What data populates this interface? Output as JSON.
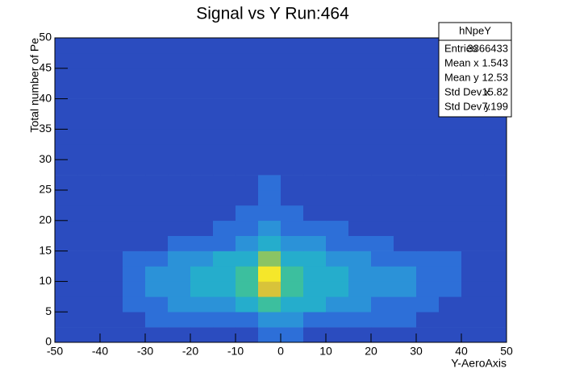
{
  "chart_data": {
    "type": "hist2d",
    "title": "Signal vs Y Run:464",
    "x_label": "Y-AeroAxis",
    "y_label": "Total number of Pe",
    "xlim": [
      -50,
      50
    ],
    "ylim": [
      0,
      50
    ],
    "xticks": [
      -50,
      -40,
      -30,
      -20,
      -10,
      0,
      10,
      20,
      30,
      40,
      50
    ],
    "yticks": [
      0,
      5,
      10,
      15,
      20,
      25,
      30,
      35,
      40,
      45,
      50
    ],
    "x_bins": [
      -50,
      -45,
      -40,
      -35,
      -30,
      -25,
      -20,
      -15,
      -10,
      -5,
      0,
      5,
      10,
      15,
      20,
      25,
      30,
      35,
      40,
      45,
      50
    ],
    "y_bins": [
      0,
      2.5,
      5,
      7.5,
      10,
      12.5,
      15,
      17.5,
      20,
      22.5,
      25,
      27.5,
      30,
      32.5,
      35,
      37.5,
      40,
      42.5,
      45,
      47.5,
      50
    ],
    "zlim": [
      1,
      8
    ],
    "palette": [
      "#2b4cbf",
      "#2d6fd8",
      "#2b92d8",
      "#25adcc",
      "#3cbf9e",
      "#8ac464",
      "#d8c33a",
      "#f5e72a"
    ],
    "z": [
      [
        1,
        1,
        1,
        1,
        1,
        1,
        1,
        1,
        1,
        2,
        2,
        1,
        1,
        1,
        1,
        1,
        1,
        1,
        1,
        1
      ],
      [
        1,
        1,
        1,
        1,
        2,
        2,
        2,
        2,
        2,
        3,
        3,
        2,
        2,
        2,
        2,
        2,
        1,
        1,
        1,
        1
      ],
      [
        1,
        1,
        1,
        2,
        2,
        3,
        3,
        3,
        4,
        5,
        4,
        4,
        3,
        3,
        2,
        2,
        2,
        1,
        1,
        1
      ],
      [
        1,
        1,
        1,
        2,
        3,
        3,
        4,
        4,
        5,
        7,
        5,
        4,
        4,
        3,
        3,
        3,
        2,
        2,
        1,
        1
      ],
      [
        1,
        1,
        1,
        2,
        3,
        3,
        4,
        4,
        5,
        8,
        5,
        4,
        4,
        3,
        3,
        3,
        2,
        2,
        1,
        1
      ],
      [
        1,
        1,
        1,
        2,
        2,
        3,
        3,
        4,
        4,
        6,
        4,
        4,
        3,
        3,
        2,
        2,
        2,
        2,
        1,
        1
      ],
      [
        1,
        1,
        1,
        1,
        1,
        2,
        2,
        2,
        3,
        4,
        3,
        3,
        2,
        2,
        2,
        1,
        1,
        1,
        1,
        1
      ],
      [
        1,
        1,
        1,
        1,
        1,
        1,
        1,
        2,
        2,
        3,
        2,
        2,
        2,
        1,
        1,
        1,
        1,
        1,
        1,
        1
      ],
      [
        1,
        1,
        1,
        1,
        1,
        1,
        1,
        1,
        2,
        2,
        2,
        1,
        1,
        1,
        1,
        1,
        1,
        1,
        1,
        1
      ],
      [
        1,
        1,
        1,
        1,
        1,
        1,
        1,
        1,
        1,
        2,
        1,
        1,
        1,
        1,
        1,
        1,
        1,
        1,
        1,
        1
      ],
      [
        1,
        1,
        1,
        1,
        1,
        1,
        1,
        1,
        1,
        2,
        1,
        1,
        1,
        1,
        1,
        1,
        1,
        1,
        1,
        1
      ],
      [
        1,
        1,
        1,
        1,
        1,
        1,
        1,
        1,
        1,
        1,
        1,
        1,
        1,
        1,
        1,
        1,
        1,
        1,
        1,
        1
      ],
      [
        1,
        1,
        1,
        1,
        1,
        1,
        1,
        1,
        1,
        1,
        1,
        1,
        1,
        1,
        1,
        1,
        1,
        1,
        1,
        1
      ],
      [
        1,
        1,
        1,
        1,
        1,
        1,
        1,
        1,
        1,
        1,
        1,
        1,
        1,
        1,
        1,
        1,
        1,
        1,
        1,
        1
      ],
      [
        1,
        1,
        1,
        1,
        1,
        1,
        1,
        1,
        1,
        1,
        1,
        1,
        1,
        1,
        1,
        1,
        1,
        1,
        1,
        1
      ],
      [
        1,
        1,
        1,
        1,
        1,
        1,
        1,
        1,
        1,
        1,
        1,
        1,
        1,
        1,
        1,
        1,
        1,
        1,
        1,
        1
      ],
      [
        1,
        1,
        1,
        1,
        1,
        1,
        1,
        1,
        1,
        1,
        1,
        1,
        1,
        1,
        1,
        1,
        1,
        1,
        1,
        1
      ],
      [
        1,
        1,
        1,
        1,
        1,
        1,
        1,
        1,
        1,
        1,
        1,
        1,
        1,
        1,
        1,
        1,
        1,
        1,
        1,
        1
      ],
      [
        1,
        1,
        1,
        1,
        1,
        1,
        1,
        1,
        1,
        1,
        1,
        1,
        1,
        1,
        1,
        1,
        1,
        1,
        1,
        1
      ],
      [
        1,
        1,
        1,
        1,
        1,
        1,
        1,
        1,
        1,
        1,
        1,
        1,
        1,
        1,
        1,
        1,
        1,
        1,
        1,
        1
      ]
    ],
    "stats": {
      "title": "hNpeY",
      "rows": [
        {
          "label": "Entries",
          "value": 3366433
        },
        {
          "label": "Mean x",
          "value": 1.543
        },
        {
          "label": "Mean y",
          "value": 12.53
        },
        {
          "label": "Std Dev x",
          "value": 15.82
        },
        {
          "label": "Std Dev y",
          "value": 7.199
        }
      ]
    }
  }
}
